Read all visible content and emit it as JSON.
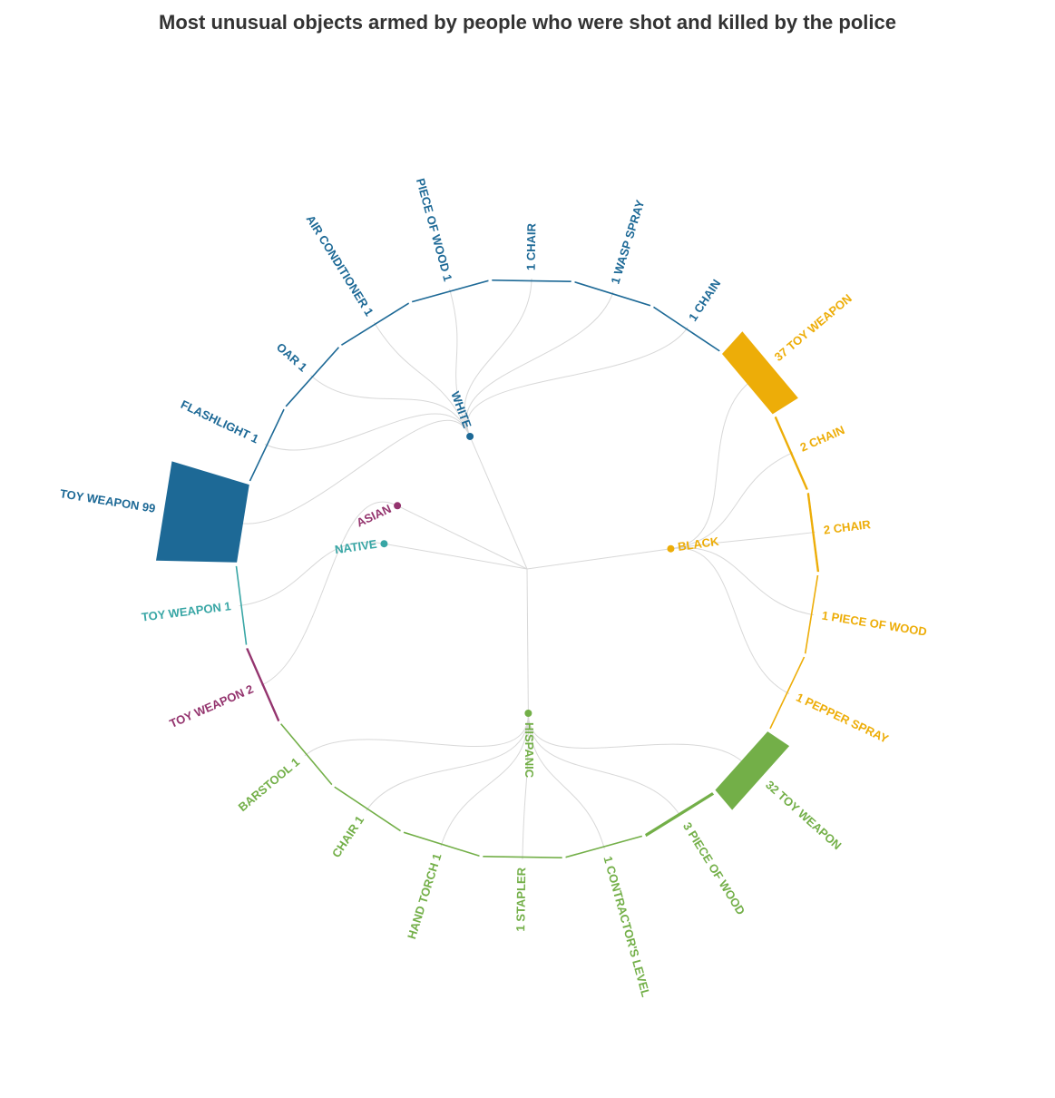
{
  "title": "Most unusual objects armed by people who were shot and killed by the police",
  "chart_data": {
    "type": "radial-dendrogram",
    "title": "Most unusual objects armed by people who were shot and killed by the police",
    "groups": [
      {
        "id": "white",
        "label": "WHITE",
        "color": "#1d6996"
      },
      {
        "id": "black",
        "label": "BLACK",
        "color": "#edad08"
      },
      {
        "id": "hispanic",
        "label": "HISPANIC",
        "color": "#73af48"
      },
      {
        "id": "native",
        "label": "NATIVE",
        "color": "#38a6a5"
      },
      {
        "id": "asian",
        "label": "ASIAN",
        "color": "#94346e"
      }
    ],
    "leaves": [
      {
        "group": "white",
        "object": "Chair",
        "value": 1,
        "label": "1 CHAIR"
      },
      {
        "group": "white",
        "object": "Wasp spray",
        "value": 1,
        "label": "1 WASP SPRAY"
      },
      {
        "group": "white",
        "object": "Chain",
        "value": 1,
        "label": "1 CHAIN"
      },
      {
        "group": "black",
        "object": "Toy weapon",
        "value": 37,
        "label": "37 TOY WEAPON"
      },
      {
        "group": "black",
        "object": "Chain",
        "value": 2,
        "label": "2 CHAIN"
      },
      {
        "group": "black",
        "object": "Chair",
        "value": 2,
        "label": "2 CHAIR"
      },
      {
        "group": "black",
        "object": "Piece of wood",
        "value": 1,
        "label": "1 PIECE OF WOOD"
      },
      {
        "group": "black",
        "object": "Pepper spray",
        "value": 1,
        "label": "1 PEPPER SPRAY"
      },
      {
        "group": "hispanic",
        "object": "Toy weapon",
        "value": 32,
        "label": "32 TOY WEAPON"
      },
      {
        "group": "hispanic",
        "object": "Piece of wood",
        "value": 3,
        "label": "3 PIECE OF WOOD"
      },
      {
        "group": "hispanic",
        "object": "Contractor's level",
        "value": 1,
        "label": "1 CONTRACTOR'S LEVEL"
      },
      {
        "group": "hispanic",
        "object": "Stapler",
        "value": 1,
        "label": "1 STAPLER"
      },
      {
        "group": "hispanic",
        "object": "Hand torch",
        "value": 1,
        "label": "HAND TORCH 1"
      },
      {
        "group": "hispanic",
        "object": "Chair",
        "value": 1,
        "label": "CHAIR 1"
      },
      {
        "group": "hispanic",
        "object": "Barstool",
        "value": 1,
        "label": "BARSTOOL 1"
      },
      {
        "group": "asian",
        "object": "Toy weapon",
        "value": 2,
        "label": "TOY WEAPON 2"
      },
      {
        "group": "native",
        "object": "Toy weapon",
        "value": 1,
        "label": "TOY WEAPON 1"
      },
      {
        "group": "white",
        "object": "Toy weapon",
        "value": 99,
        "label": "TOY WEAPON 99"
      },
      {
        "group": "white",
        "object": "Flashlight",
        "value": 1,
        "label": "FLASHLIGHT 1"
      },
      {
        "group": "white",
        "object": "Oar",
        "value": 1,
        "label": "OAR 1"
      },
      {
        "group": "white",
        "object": "Air conditioner",
        "value": 1,
        "label": "AIR CONDITIONER 1"
      },
      {
        "group": "white",
        "object": "Piece of wood",
        "value": 1,
        "label": "PIECE OF WOOD 1"
      }
    ]
  }
}
